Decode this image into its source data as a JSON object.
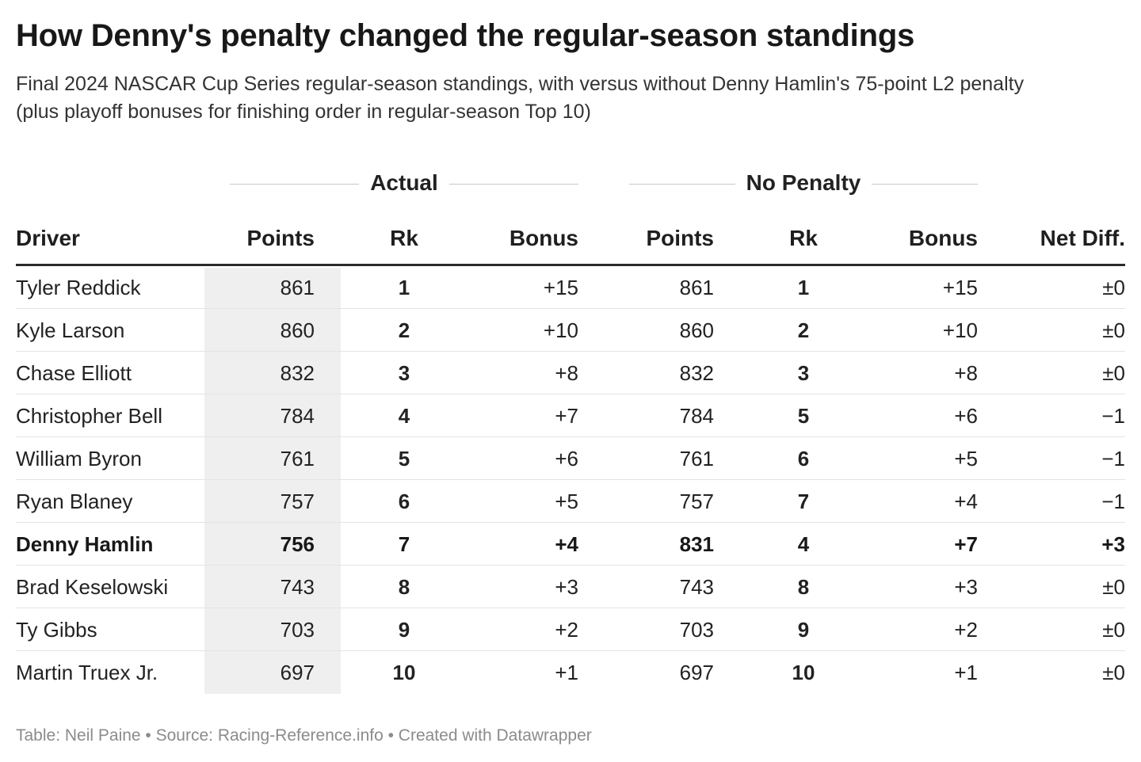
{
  "header": {
    "title": "How Denny's penalty changed the regular-season standings",
    "subtitle": "Final 2024 NASCAR Cup Series regular-season standings, with versus without Denny Hamlin's 75-point L2 penalty (plus playoff bonuses for finishing order in regular-season Top 10)"
  },
  "chart_data": {
    "type": "table",
    "column_groups": [
      {
        "label": "Actual",
        "columns": [
          "Points",
          "Rk",
          "Bonus"
        ]
      },
      {
        "label": "No Penalty",
        "columns": [
          "Points",
          "Rk",
          "Bonus"
        ]
      }
    ],
    "columns": [
      "Driver",
      "Points",
      "Rk",
      "Bonus",
      "Points",
      "Rk",
      "Bonus",
      "Net Diff."
    ],
    "highlighted_row": "Denny Hamlin",
    "rows": [
      {
        "driver": "Tyler Reddick",
        "actual_points": "861",
        "actual_rk": "1",
        "actual_bonus": "+15",
        "np_points": "861",
        "np_rk": "1",
        "np_bonus": "+15",
        "net_diff": "±0"
      },
      {
        "driver": "Kyle Larson",
        "actual_points": "860",
        "actual_rk": "2",
        "actual_bonus": "+10",
        "np_points": "860",
        "np_rk": "2",
        "np_bonus": "+10",
        "net_diff": "±0"
      },
      {
        "driver": "Chase Elliott",
        "actual_points": "832",
        "actual_rk": "3",
        "actual_bonus": "+8",
        "np_points": "832",
        "np_rk": "3",
        "np_bonus": "+8",
        "net_diff": "±0"
      },
      {
        "driver": "Christopher Bell",
        "actual_points": "784",
        "actual_rk": "4",
        "actual_bonus": "+7",
        "np_points": "784",
        "np_rk": "5",
        "np_bonus": "+6",
        "net_diff": "−1"
      },
      {
        "driver": "William Byron",
        "actual_points": "761",
        "actual_rk": "5",
        "actual_bonus": "+6",
        "np_points": "761",
        "np_rk": "6",
        "np_bonus": "+5",
        "net_diff": "−1"
      },
      {
        "driver": "Ryan Blaney",
        "actual_points": "757",
        "actual_rk": "6",
        "actual_bonus": "+5",
        "np_points": "757",
        "np_rk": "7",
        "np_bonus": "+4",
        "net_diff": "−1"
      },
      {
        "driver": "Denny Hamlin",
        "actual_points": "756",
        "actual_rk": "7",
        "actual_bonus": "+4",
        "np_points": "831",
        "np_rk": "4",
        "np_bonus": "+7",
        "net_diff": "+3"
      },
      {
        "driver": "Brad Keselowski",
        "actual_points": "743",
        "actual_rk": "8",
        "actual_bonus": "+3",
        "np_points": "743",
        "np_rk": "8",
        "np_bonus": "+3",
        "net_diff": "±0"
      },
      {
        "driver": "Ty Gibbs",
        "actual_points": "703",
        "actual_rk": "9",
        "actual_bonus": "+2",
        "np_points": "703",
        "np_rk": "9",
        "np_bonus": "+2",
        "net_diff": "±0"
      },
      {
        "driver": "Martin Truex Jr.",
        "actual_points": "697",
        "actual_rk": "10",
        "actual_bonus": "+1",
        "np_points": "697",
        "np_rk": "10",
        "np_bonus": "+1",
        "net_diff": "±0"
      }
    ]
  },
  "footer": {
    "credit": "Table: Neil Paine • Source: Racing-Reference.info • Created with Datawrapper"
  }
}
